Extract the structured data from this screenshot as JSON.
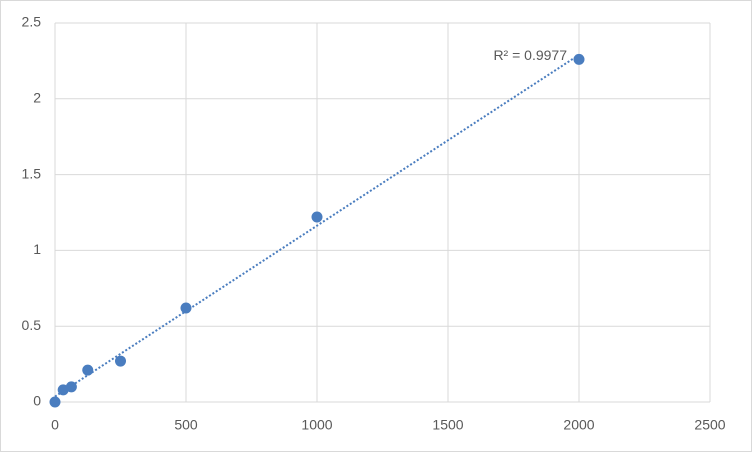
{
  "chart_data": {
    "type": "scatter",
    "series": [
      {
        "color": "#4a7dbf",
        "x": [
          0,
          31.25,
          62.5,
          125,
          250,
          500,
          1000,
          2000
        ],
        "values": [
          0,
          0.08,
          0.1,
          0.21,
          0.27,
          0.62,
          1.22,
          2.26
        ]
      }
    ],
    "trendline": "linear",
    "annotation": "R² = 0.9977",
    "xlim": [
      0,
      2500
    ],
    "xticks": [
      0,
      500,
      1000,
      1500,
      2000,
      2500
    ],
    "ylim": [
      0,
      2.5
    ],
    "yticks": [
      0,
      0.5,
      1,
      1.5,
      2,
      2.5
    ],
    "grid": true
  }
}
